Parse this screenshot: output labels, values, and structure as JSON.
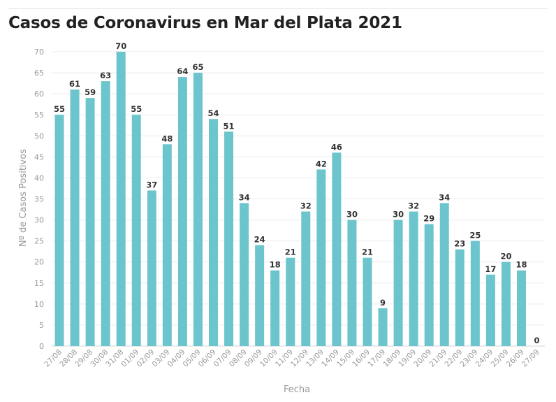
{
  "title": "Casos de Coronavirus en Mar del Plata 2021",
  "colors": {
    "bar": "#6cc5cc",
    "grid": "#ebebeb",
    "text": "#333333",
    "axis_text": "#999999"
  },
  "chart_data": {
    "type": "bar",
    "title": "Casos de Coronavirus en Mar del Plata 2021",
    "xlabel": "Fecha",
    "ylabel": "Nº de Casos Positivos",
    "ylim": [
      0,
      70
    ],
    "yticks": [
      0,
      5,
      10,
      15,
      20,
      25,
      30,
      35,
      40,
      45,
      50,
      55,
      60,
      65,
      70
    ],
    "grid": true,
    "categories": [
      "27/08",
      "28/08",
      "29/08",
      "30/08",
      "31/08",
      "01/09",
      "02/09",
      "03/09",
      "04/09",
      "05/09",
      "06/09",
      "07/09",
      "08/09",
      "09/09",
      "10/09",
      "11/09",
      "12/09",
      "13/09",
      "14/09",
      "15/09",
      "16/09",
      "17/09",
      "18/09",
      "19/09",
      "20/09",
      "21/09",
      "22/09",
      "23/09",
      "24/09",
      "25/09",
      "26/09",
      "27/09"
    ],
    "values": [
      55,
      61,
      59,
      63,
      70,
      55,
      37,
      48,
      64,
      65,
      54,
      51,
      34,
      24,
      18,
      21,
      32,
      42,
      46,
      30,
      21,
      9,
      30,
      32,
      29,
      34,
      23,
      25,
      17,
      20,
      18,
      0
    ]
  }
}
